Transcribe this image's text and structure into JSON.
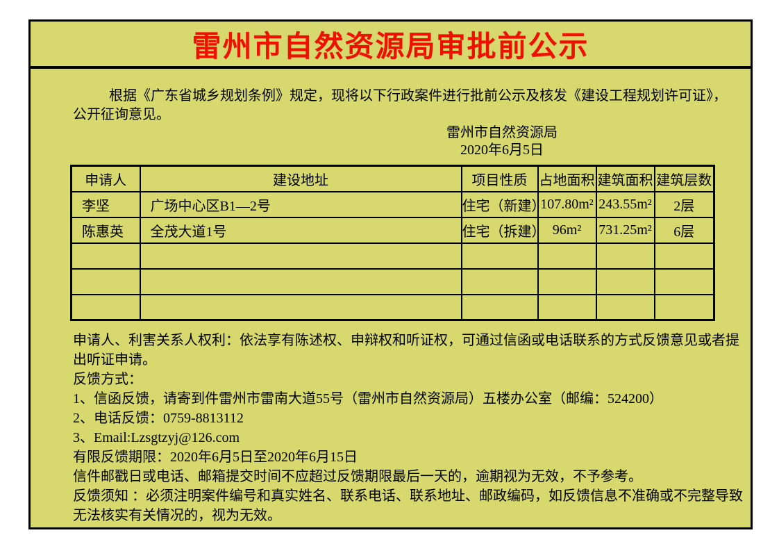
{
  "page": {
    "title": "雷州市自然资源局审批前公示"
  },
  "intro": {
    "lines": [
      "根据《广东省城乡规划条例》规定，现将以下行政案件进行批前公示及核发《建设工程规划许可证》，",
      "公开征询意见。"
    ]
  },
  "signature": {
    "org": "雷州市自然资源局",
    "date": "2020年6月5日"
  },
  "table": {
    "headers": [
      "申请人",
      "建设地址",
      "项目性质",
      "占地面积",
      "建筑面积",
      "建筑层数"
    ],
    "rows": [
      [
        "李坚",
        "广场中心区B1—2号",
        "住宅（新建）",
        "107.80m²",
        "243.55m²",
        "2层"
      ],
      [
        "陈惠英",
        "全茂大道1号",
        "住宅（拆建）",
        "96m²",
        "731.25m²",
        "6层"
      ],
      [
        "",
        "",
        "",
        "",
        "",
        ""
      ],
      [
        "",
        "",
        "",
        "",
        "",
        ""
      ],
      [
        "",
        "",
        "",
        "",
        "",
        ""
      ]
    ]
  },
  "notice": {
    "lines": [
      "申请人、利害关系人权利：依法享有陈述权、申辩权和听证权，可通过信函或电话联系的方式反馈意见或者提",
      "出听证申请。",
      "反馈方式：",
      "1、信函反馈，请寄到件雷州市雷南大道55号（雷州市自然资源局）五楼办公室（邮编：524200）",
      "2、电话反馈：0759-8813112",
      "3、Email:Lzsgtzyj@126.com",
      "有限反馈期限：2020年6月5日至2020年6月15日",
      "信件邮戳日或电话、邮箱提交时间不应超过反馈期限最后一天的，逾期视为无效，不予参考。",
      "反馈须知 ：必须注明案件编号和真实姓名、联系电话、联系地址、邮政编码，如反馈信息不准确或不完整导致",
      "无法核实有关情况的，视为无效。"
    ]
  },
  "colors": {
    "background": "#d7d96e",
    "title": "#ee1000",
    "line": "#000000"
  }
}
